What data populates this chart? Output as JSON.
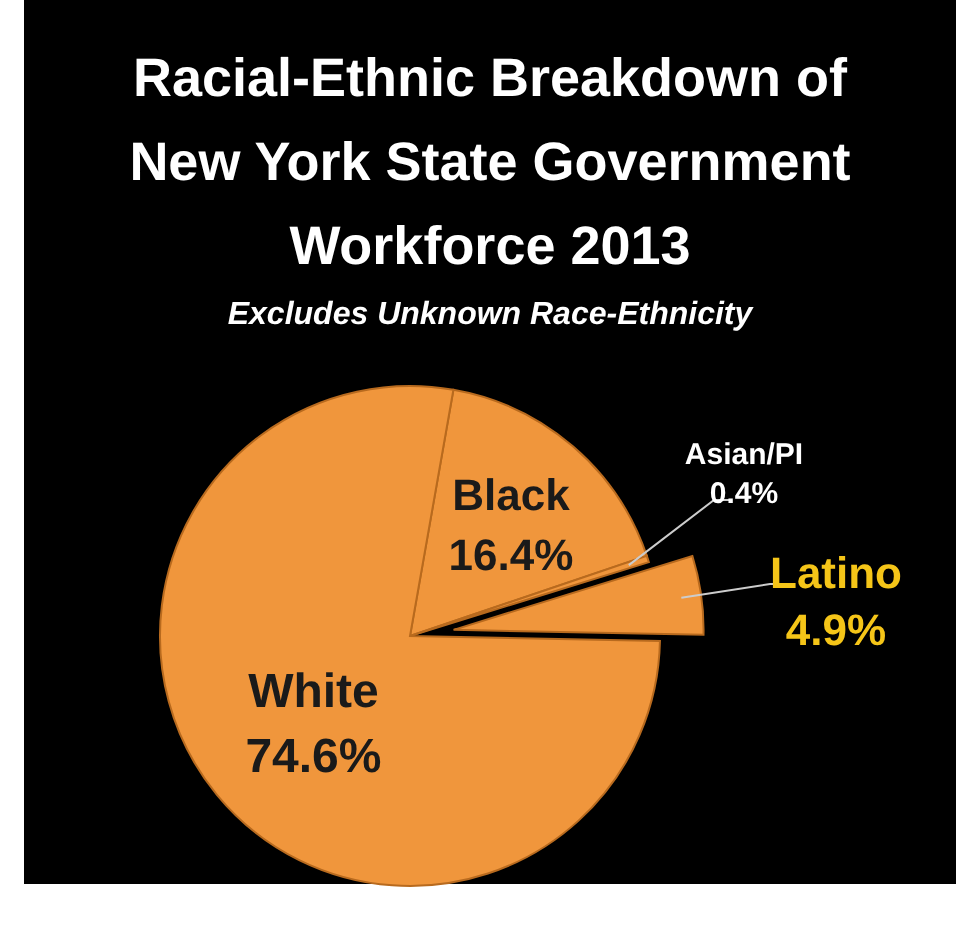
{
  "chart_data": {
    "type": "pie",
    "title": "Racial-Ethnic Breakdown of New York State Government Workforce 2013",
    "subtitle": "Excludes Unknown Race-Ethnicity",
    "categories": [
      "Black",
      "Asian/PI",
      "Latino",
      "White"
    ],
    "values": [
      16.4,
      0.4,
      4.9,
      74.6
    ],
    "colors": [
      "#f0963c",
      "#f0963c",
      "#f0963c",
      "#f0963c"
    ],
    "value_labels": [
      "16.4%",
      "0.4%",
      "4.9%",
      "74.6%"
    ]
  }
}
